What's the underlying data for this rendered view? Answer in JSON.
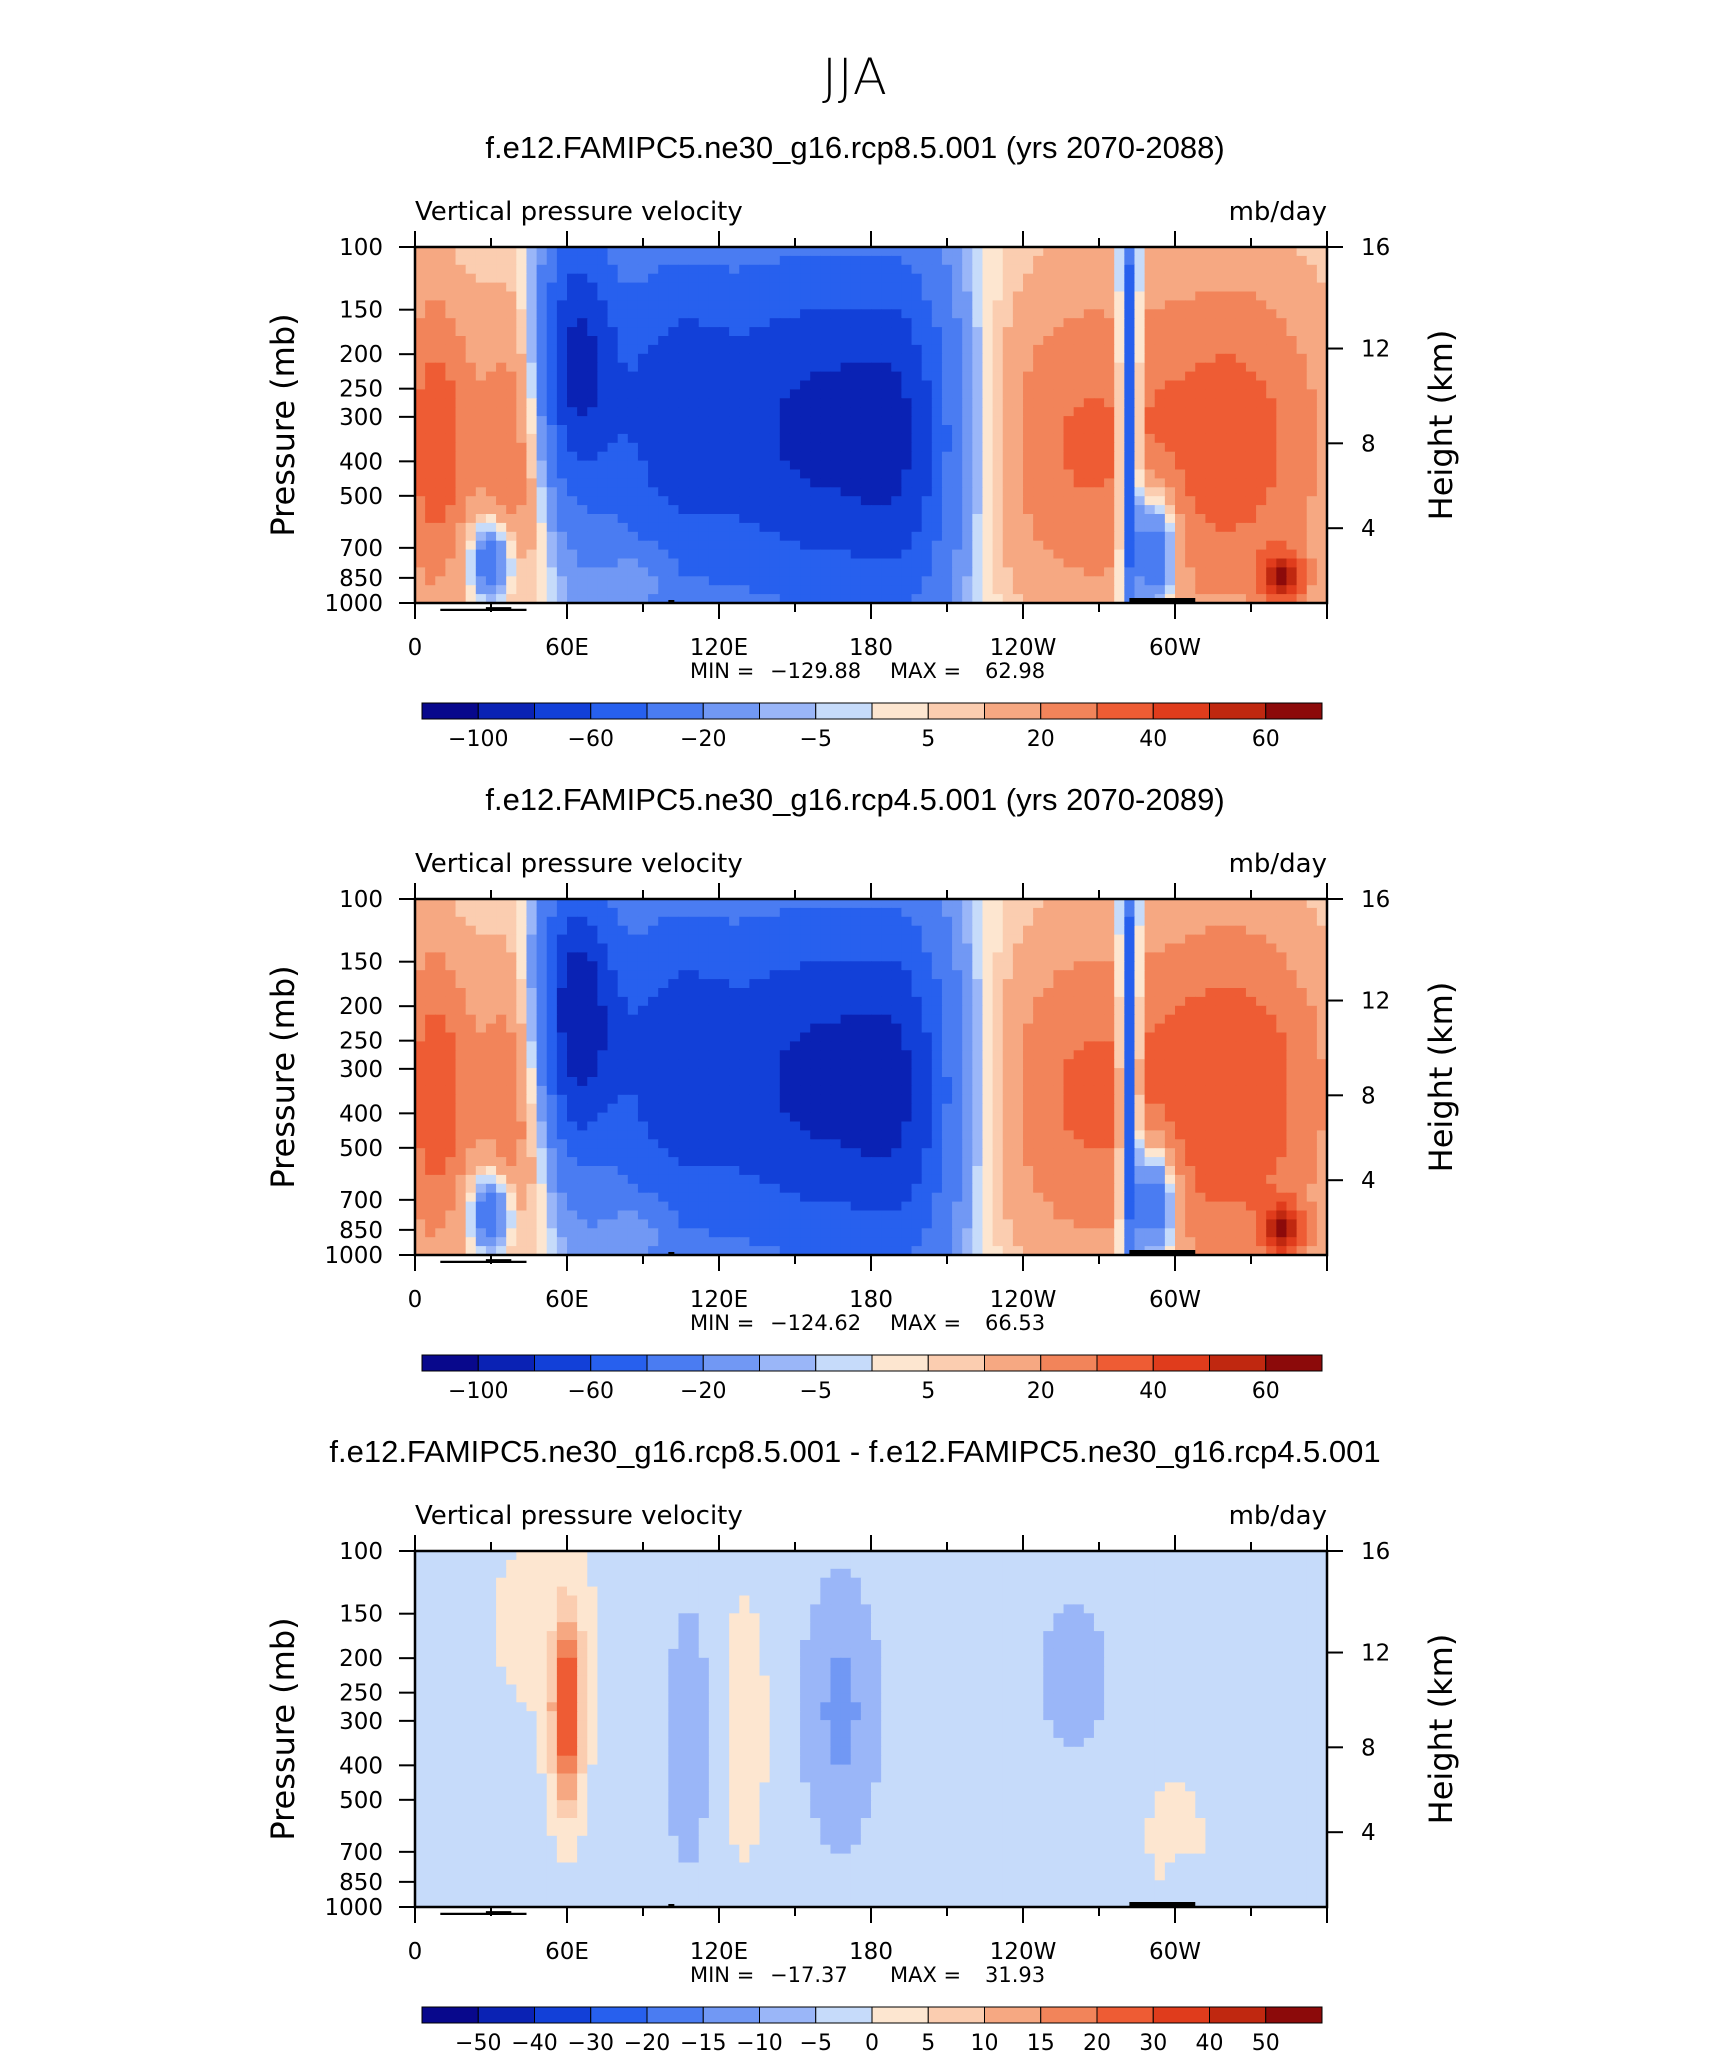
{
  "figure_title": "JJA",
  "chart_data": [
    {
      "type": "heatmap",
      "title": "f.e12.FAMIPC5.ne30_g16.rcp8.5.001 (yrs 2070-2088)",
      "left_string": "Vertical pressure velocity",
      "right_string": "mb/day",
      "ylabel": "Pressure (mb)",
      "ylabel_right": "Height (km)",
      "xticks": [
        "0",
        "60E",
        "120E",
        "180",
        "120W",
        "60W"
      ],
      "yticks": [
        "100",
        "150",
        "200",
        "250",
        "300",
        "400",
        "500",
        "700",
        "850",
        "1000"
      ],
      "yticks_right": [
        "16",
        "12",
        "8",
        "4"
      ],
      "min_label": "MIN =",
      "min_value": "−129.88",
      "max_label": "MAX =",
      "max_value": "62.98",
      "colorbar_labels": [
        "−100",
        "−60",
        "−20",
        "−5",
        "5",
        "20",
        "40",
        "60"
      ],
      "colorbar_levels": [
        -120,
        -100,
        -80,
        -60,
        -40,
        -20,
        -10,
        -5,
        0,
        5,
        10,
        20,
        30,
        40,
        50,
        60,
        80
      ]
    },
    {
      "type": "heatmap",
      "title": "f.e12.FAMIPC5.ne30_g16.rcp4.5.001 (yrs 2070-2089)",
      "left_string": "Vertical pressure velocity",
      "right_string": "mb/day",
      "ylabel": "Pressure (mb)",
      "ylabel_right": "Height (km)",
      "xticks": [
        "0",
        "60E",
        "120E",
        "180",
        "120W",
        "60W"
      ],
      "yticks": [
        "100",
        "150",
        "200",
        "250",
        "300",
        "400",
        "500",
        "700",
        "850",
        "1000"
      ],
      "yticks_right": [
        "16",
        "12",
        "8",
        "4"
      ],
      "min_label": "MIN =",
      "min_value": "−124.62",
      "max_label": "MAX =",
      "max_value": "66.53",
      "colorbar_labels": [
        "−100",
        "−60",
        "−20",
        "−5",
        "5",
        "20",
        "40",
        "60"
      ],
      "colorbar_levels": [
        -120,
        -100,
        -80,
        -60,
        -40,
        -20,
        -10,
        -5,
        0,
        5,
        10,
        20,
        30,
        40,
        50,
        60,
        80
      ]
    },
    {
      "type": "heatmap",
      "title": "f.e12.FAMIPC5.ne30_g16.rcp8.5.001 - f.e12.FAMIPC5.ne30_g16.rcp4.5.001",
      "left_string": "Vertical pressure velocity",
      "right_string": "mb/day",
      "ylabel": "Pressure (mb)",
      "ylabel_right": "Height (km)",
      "xticks": [
        "0",
        "60E",
        "120E",
        "180",
        "120W",
        "60W"
      ],
      "yticks": [
        "100",
        "150",
        "200",
        "250",
        "300",
        "400",
        "500",
        "700",
        "850",
        "1000"
      ],
      "yticks_right": [
        "16",
        "12",
        "8",
        "4"
      ],
      "min_label": "MIN =",
      "min_value": "−17.37",
      "max_label": "MAX =",
      "max_value": "31.93",
      "colorbar_labels": [
        "−50",
        "−40",
        "−30",
        "−20",
        "−15",
        "−10",
        "−5",
        "0",
        "5",
        "10",
        "15",
        "20",
        "30",
        "40",
        "50"
      ],
      "colorbar_levels": [
        -60,
        -50,
        -40,
        -30,
        -20,
        -15,
        -10,
        -5,
        0,
        5,
        10,
        15,
        20,
        30,
        40,
        50,
        60
      ]
    }
  ],
  "colormap": [
    "#08088c",
    "#0a22b4",
    "#1240d8",
    "#2760ee",
    "#4a7cf2",
    "#7198f4",
    "#9ab6f8",
    "#c6dbfa",
    "#fde6d0",
    "#fbcdb0",
    "#f6a882",
    "#f2845a",
    "#ee5c34",
    "#e03c1c",
    "#c02810",
    "#8c0a0a"
  ]
}
